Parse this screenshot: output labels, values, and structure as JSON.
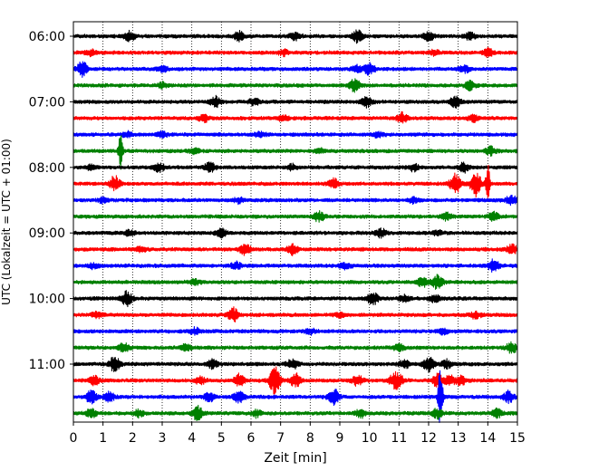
{
  "chart_data": {
    "type": "line",
    "title": "",
    "xlabel": "Zeit  [min]",
    "ylabel": "UTC (Lokalzeit = UTC + 01:00)",
    "xlim": [
      0,
      15
    ],
    "x_ticks": [
      0,
      1,
      2,
      3,
      4,
      5,
      6,
      7,
      8,
      9,
      10,
      11,
      12,
      13,
      14,
      15
    ],
    "x_tick_labels": [
      "0",
      "1",
      "2",
      "3",
      "4",
      "5",
      "6",
      "7",
      "8",
      "9",
      "10",
      "11",
      "12",
      "13",
      "14",
      "15"
    ],
    "y_tick_labels": [
      "06:00",
      "07:00",
      "08:00",
      "09:00",
      "10:00",
      "11:00"
    ],
    "trace_interval_minutes": 15,
    "first_trace_start": "06:00",
    "grid": "vertical dotted",
    "colors": [
      "#000000",
      "#ff0000",
      "#0000ff",
      "#008000"
    ],
    "series": [
      {
        "start": "06:00",
        "color": "#000000",
        "events": [
          [
            1.9,
            0.6
          ],
          [
            5.6,
            0.5
          ],
          [
            7.5,
            0.5
          ],
          [
            9.6,
            0.8
          ],
          [
            12.0,
            0.5
          ],
          [
            13.4,
            0.4
          ]
        ]
      },
      {
        "start": "06:15",
        "color": "#ff0000",
        "events": [
          [
            0.6,
            0.3
          ],
          [
            7.1,
            0.3
          ],
          [
            12.2,
            0.3
          ],
          [
            14.0,
            0.5
          ]
        ]
      },
      {
        "start": "06:30",
        "color": "#0000ff",
        "events": [
          [
            0.3,
            0.8
          ],
          [
            3.0,
            0.3
          ],
          [
            9.6,
            0.4
          ],
          [
            10.0,
            0.7
          ],
          [
            13.2,
            0.4
          ]
        ]
      },
      {
        "start": "06:45",
        "color": "#008000",
        "events": [
          [
            3.0,
            0.3
          ],
          [
            9.5,
            0.7
          ],
          [
            13.4,
            0.5
          ]
        ]
      },
      {
        "start": "07:00",
        "color": "#000000",
        "events": [
          [
            4.8,
            0.6
          ],
          [
            6.1,
            0.4
          ],
          [
            9.9,
            0.6
          ],
          [
            12.9,
            0.6
          ]
        ]
      },
      {
        "start": "07:15",
        "color": "#ff0000",
        "events": [
          [
            4.4,
            0.4
          ],
          [
            7.1,
            0.3
          ],
          [
            11.1,
            0.6
          ],
          [
            13.5,
            0.4
          ]
        ]
      },
      {
        "start": "07:30",
        "color": "#0000ff",
        "events": [
          [
            1.8,
            0.3
          ],
          [
            3.0,
            0.3
          ],
          [
            6.3,
            0.3
          ],
          [
            10.3,
            0.3
          ]
        ]
      },
      {
        "start": "07:45",
        "color": "#008000",
        "events": [
          [
            1.6,
            2.2
          ],
          [
            4.1,
            0.3
          ],
          [
            8.3,
            0.3
          ],
          [
            14.1,
            0.5
          ]
        ]
      },
      {
        "start": "08:00",
        "color": "#000000",
        "events": [
          [
            0.6,
            0.3
          ],
          [
            2.9,
            0.5
          ],
          [
            4.6,
            0.6
          ],
          [
            7.4,
            0.3
          ],
          [
            11.5,
            0.4
          ],
          [
            13.2,
            0.5
          ]
        ]
      },
      {
        "start": "08:15",
        "color": "#ff0000",
        "events": [
          [
            1.4,
            0.9
          ],
          [
            8.8,
            0.6
          ],
          [
            12.9,
            1.2
          ],
          [
            13.6,
            1.5
          ],
          [
            14.0,
            2.2
          ]
        ]
      },
      {
        "start": "08:30",
        "color": "#0000ff",
        "events": [
          [
            1.0,
            0.3
          ],
          [
            5.6,
            0.3
          ],
          [
            11.5,
            0.3
          ],
          [
            14.8,
            0.5
          ]
        ]
      },
      {
        "start": "08:45",
        "color": "#008000",
        "events": [
          [
            8.3,
            0.6
          ],
          [
            12.6,
            0.4
          ],
          [
            14.2,
            0.5
          ]
        ]
      },
      {
        "start": "09:00",
        "color": "#000000",
        "events": [
          [
            1.9,
            0.3
          ],
          [
            5.0,
            0.5
          ],
          [
            10.4,
            0.5
          ],
          [
            12.3,
            0.3
          ]
        ]
      },
      {
        "start": "09:15",
        "color": "#ff0000",
        "events": [
          [
            2.3,
            0.3
          ],
          [
            5.8,
            0.6
          ],
          [
            7.4,
            0.6
          ],
          [
            14.8,
            0.6
          ]
        ]
      },
      {
        "start": "09:30",
        "color": "#0000ff",
        "events": [
          [
            0.7,
            0.3
          ],
          [
            5.5,
            0.4
          ],
          [
            9.2,
            0.4
          ],
          [
            14.2,
            0.8
          ]
        ]
      },
      {
        "start": "09:45",
        "color": "#008000",
        "events": [
          [
            4.1,
            0.3
          ],
          [
            11.8,
            0.5
          ],
          [
            12.3,
            0.8
          ]
        ]
      },
      {
        "start": "10:00",
        "color": "#000000",
        "events": [
          [
            1.8,
            0.8
          ],
          [
            10.1,
            0.8
          ],
          [
            11.2,
            0.4
          ],
          [
            12.2,
            0.4
          ]
        ]
      },
      {
        "start": "10:15",
        "color": "#ff0000",
        "events": [
          [
            0.8,
            0.3
          ],
          [
            5.4,
            0.8
          ],
          [
            9.0,
            0.3
          ],
          [
            13.6,
            0.4
          ]
        ]
      },
      {
        "start": "10:30",
        "color": "#0000ff",
        "events": [
          [
            4.1,
            0.4
          ],
          [
            8.0,
            0.3
          ],
          [
            12.5,
            0.3
          ]
        ]
      },
      {
        "start": "10:45",
        "color": "#008000",
        "events": [
          [
            1.7,
            0.5
          ],
          [
            3.8,
            0.4
          ],
          [
            11.0,
            0.5
          ],
          [
            14.8,
            0.6
          ]
        ]
      },
      {
        "start": "11:00",
        "color": "#000000",
        "events": [
          [
            1.4,
            0.9
          ],
          [
            4.7,
            0.5
          ],
          [
            7.4,
            0.6
          ],
          [
            11.2,
            0.5
          ],
          [
            12.0,
            0.9
          ],
          [
            12.6,
            0.5
          ]
        ]
      },
      {
        "start": "11:15",
        "color": "#ff0000",
        "events": [
          [
            0.7,
            0.5
          ],
          [
            4.3,
            0.4
          ],
          [
            5.6,
            0.7
          ],
          [
            6.8,
            1.6
          ],
          [
            7.5,
            0.8
          ],
          [
            9.6,
            0.6
          ],
          [
            10.8,
            0.6
          ],
          [
            11.0,
            0.7
          ],
          [
            12.3,
            0.8
          ],
          [
            12.7,
            0.6
          ],
          [
            13.1,
            0.5
          ]
        ]
      },
      {
        "start": "11:30",
        "color": "#0000ff",
        "events": [
          [
            0.6,
            0.9
          ],
          [
            1.2,
            0.6
          ],
          [
            4.6,
            0.5
          ],
          [
            5.6,
            0.7
          ],
          [
            8.8,
            0.9
          ],
          [
            12.4,
            4.0
          ],
          [
            14.7,
            0.7
          ]
        ]
      },
      {
        "start": "11:45",
        "color": "#008000",
        "events": [
          [
            0.6,
            0.5
          ],
          [
            2.2,
            0.4
          ],
          [
            4.2,
            0.8
          ],
          [
            6.2,
            0.4
          ],
          [
            9.7,
            0.5
          ],
          [
            12.3,
            0.6
          ],
          [
            14.3,
            0.5
          ]
        ]
      }
    ]
  }
}
